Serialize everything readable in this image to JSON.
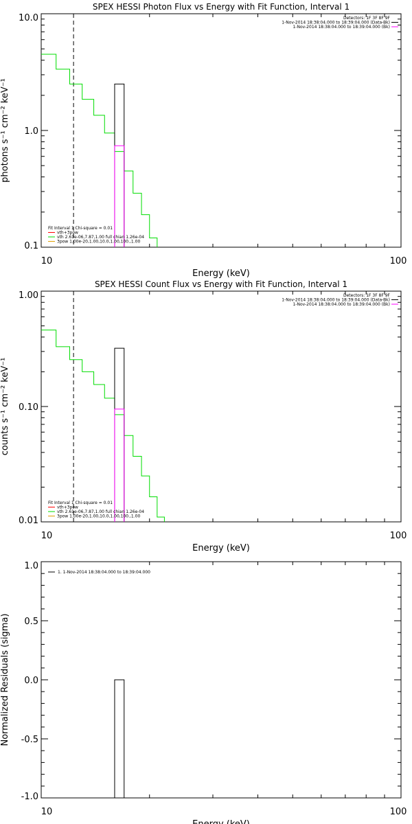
{
  "colors": {
    "background": "#ffffff",
    "axes": "#000000",
    "data_histogram": "#000000",
    "background_hist": "#ff00ff",
    "model_total": "#ff0000",
    "vth": "#00dd00",
    "3pow": "#e0a000"
  },
  "chart_data": [
    {
      "type": "line",
      "title": "SPEX HESSI Photon Flux vs Energy with Fit Function, Interval 1",
      "xlabel": "Energy (keV)",
      "ylabel": "photons s⁻¹ cm⁻² keV⁻¹",
      "xscale": "log",
      "yscale": "log",
      "xlim": [
        10,
        100
      ],
      "ylim": [
        0.1,
        10
      ],
      "xticks": [
        {
          "v": 10,
          "label": "10"
        },
        {
          "v": 100,
          "label": "100"
        }
      ],
      "yticks": [
        {
          "v": 0.1,
          "label": "0.1"
        },
        {
          "v": 1,
          "label": "1.0"
        },
        {
          "v": 10,
          "label": "10.0"
        }
      ],
      "vline": 12.3,
      "legend_top_right": [
        "Detectors: 1F 3F 8F 9F",
        "1-Nov-2014 18:38:04.000 to 18:39:04.000 (Data-Bk)",
        "1-Nov-2014 18:38:04.000 to 18:39:04.000 (Bk)"
      ],
      "legend_bottom_left": [
        "Fit Interval 1   Chi-square = 0.01",
        "vth+3pow",
        "vth 2.61e-06,7.87,1.00  full chian 1.26e-04",
        "3pow 1.00e-20,1.00,10.0,1.00,100.,1.00"
      ],
      "series": [
        {
          "name": "vth",
          "edges": [
            10,
            11,
            12,
            13,
            14,
            15,
            16,
            17,
            18,
            19,
            20,
            21,
            22
          ],
          "values": [
            4.5,
            3.35,
            2.5,
            1.85,
            1.35,
            0.95,
            0.66,
            0.45,
            0.29,
            0.19,
            0.12,
            0.08
          ]
        },
        {
          "name": "Data-Bk",
          "edges": [
            16,
            17
          ],
          "values": [
            2.5
          ]
        },
        {
          "name": "Bk",
          "edges": [
            16,
            17
          ],
          "values": [
            0.74
          ]
        }
      ]
    },
    {
      "type": "line",
      "title": "SPEX HESSI Count Flux vs Energy with Fit Function, Interval 1",
      "xlabel": "Energy (keV)",
      "ylabel": "counts s⁻¹ cm⁻² keV⁻¹",
      "xscale": "log",
      "yscale": "log",
      "xlim": [
        10,
        100
      ],
      "ylim": [
        0.01,
        1
      ],
      "xticks": [
        {
          "v": 10,
          "label": "10"
        },
        {
          "v": 100,
          "label": "100"
        }
      ],
      "yticks": [
        {
          "v": 0.01,
          "label": "0.01"
        },
        {
          "v": 0.1,
          "label": "0.10"
        },
        {
          "v": 1,
          "label": "1.00"
        }
      ],
      "vline": 12.3,
      "legend_top_right": [
        "Detectors: 1F 3F 8F 9F",
        "1-Nov-2014 18:38:04.000 to 18:39:04.000 (Data-Bk)",
        "1-Nov-2014 18:38:04.000 to 18:39:04.000 (Bk)"
      ],
      "legend_bottom_left": [
        "Fit Interval 1   Chi-square = 0.01",
        "vth+3pow",
        "vth 2.61e-06,7.87,1.00  full chian 1.26e-04",
        "3pow 1.00e-20,1.00,10.0,1.00,100.,1.00"
      ],
      "series": [
        {
          "name": "vth",
          "edges": [
            10,
            11,
            12,
            13,
            14,
            15,
            16,
            17,
            18,
            19,
            20,
            21,
            22
          ],
          "values": [
            0.46,
            0.33,
            0.255,
            0.2,
            0.155,
            0.118,
            0.085,
            0.056,
            0.037,
            0.025,
            0.0165,
            0.011
          ]
        },
        {
          "name": "Data-Bk",
          "edges": [
            16,
            17
          ],
          "values": [
            0.32
          ]
        },
        {
          "name": "Bk",
          "edges": [
            16,
            17
          ],
          "values": [
            0.095
          ]
        }
      ]
    },
    {
      "type": "line",
      "title": "",
      "xlabel": "Energy (keV)",
      "ylabel": "Normalized Residuals (sigma)",
      "xscale": "log",
      "yscale": "linear",
      "xlim": [
        10,
        100
      ],
      "ylim": [
        -1,
        1
      ],
      "xticks": [
        {
          "v": 10,
          "label": "10"
        },
        {
          "v": 100,
          "label": "100"
        }
      ],
      "yticks": [
        {
          "v": -1,
          "label": "-1.0"
        },
        {
          "v": -0.5,
          "label": "-0.5"
        },
        {
          "v": 0,
          "label": "0.0"
        },
        {
          "v": 0.5,
          "label": "0.5"
        },
        {
          "v": 1,
          "label": "1.0"
        }
      ],
      "legend_top_left": [
        "1.  1-Nov-2014 18:38:04.000 to 18:39:04.000"
      ],
      "series": [
        {
          "name": "residual",
          "edges": [
            16,
            17
          ],
          "values": [
            0.0
          ]
        }
      ]
    }
  ]
}
